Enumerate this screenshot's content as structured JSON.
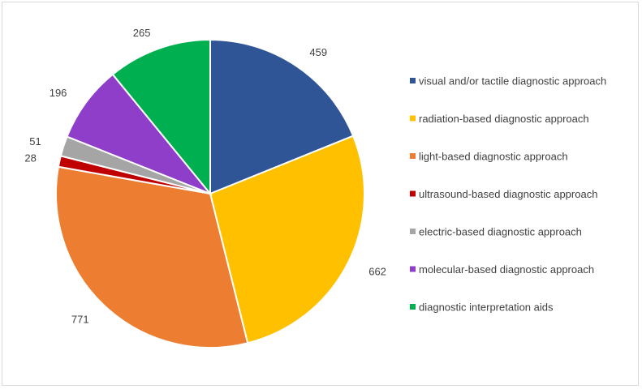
{
  "chart_data": {
    "type": "pie",
    "title": "",
    "start_angle_deg": 0,
    "direction": "clockwise",
    "legend_position": "right",
    "show_data_labels": true,
    "slices": [
      {
        "label": "visual and/or tactile diagnostic approach",
        "value": 459,
        "color": "#2f5597"
      },
      {
        "label": "radiation-based diagnostic approach",
        "value": 662,
        "color": "#ffc000"
      },
      {
        "label": "light-based diagnostic approach",
        "value": 771,
        "color": "#ed7d31"
      },
      {
        "label": "ultrasound-based diagnostic approach",
        "value": 28,
        "color": "#c00000"
      },
      {
        "label": "electric-based diagnostic approach",
        "value": 51,
        "color": "#a5a5a5"
      },
      {
        "label": "molecular-based diagnostic approach",
        "value": 196,
        "color": "#8e3ec9"
      },
      {
        "label": "diagnostic interpretation aids",
        "value": 265,
        "color": "#00b050"
      }
    ]
  }
}
